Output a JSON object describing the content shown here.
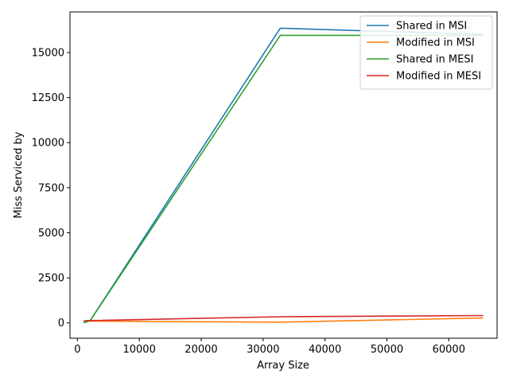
{
  "chart_data": {
    "type": "line",
    "title": "",
    "xlabel": "Array Size",
    "ylabel": "Miss Serviced by",
    "xlim": [
      -1200,
      67800
    ],
    "ylim": [
      -850,
      17250
    ],
    "xticks": [
      0,
      10000,
      20000,
      30000,
      40000,
      50000,
      60000
    ],
    "yticks": [
      0,
      2500,
      5000,
      7500,
      10000,
      12500,
      15000
    ],
    "xtick_labels": [
      "0",
      "10000",
      "20000",
      "30000",
      "40000",
      "50000",
      "60000"
    ],
    "ytick_labels": [
      "0",
      "2500",
      "5000",
      "7500",
      "10000",
      "12500",
      "15000"
    ],
    "grid": false,
    "legend_position": "top-right",
    "x": [
      1024,
      2048,
      32768,
      65536
    ],
    "series": [
      {
        "name": "Shared in MSI",
        "color": "#1f77b4",
        "values": [
          10,
          120,
          16350,
          16000
        ]
      },
      {
        "name": "Modified in MSI",
        "color": "#ff7f0e",
        "values": [
          90,
          100,
          40,
          270
        ]
      },
      {
        "name": "Shared in MESI",
        "color": "#2ca02c",
        "values": [
          10,
          120,
          15950,
          15950
        ]
      },
      {
        "name": "Modified in MESI",
        "color": "#d62728",
        "values": [
          120,
          130,
          340,
          410
        ]
      }
    ]
  }
}
